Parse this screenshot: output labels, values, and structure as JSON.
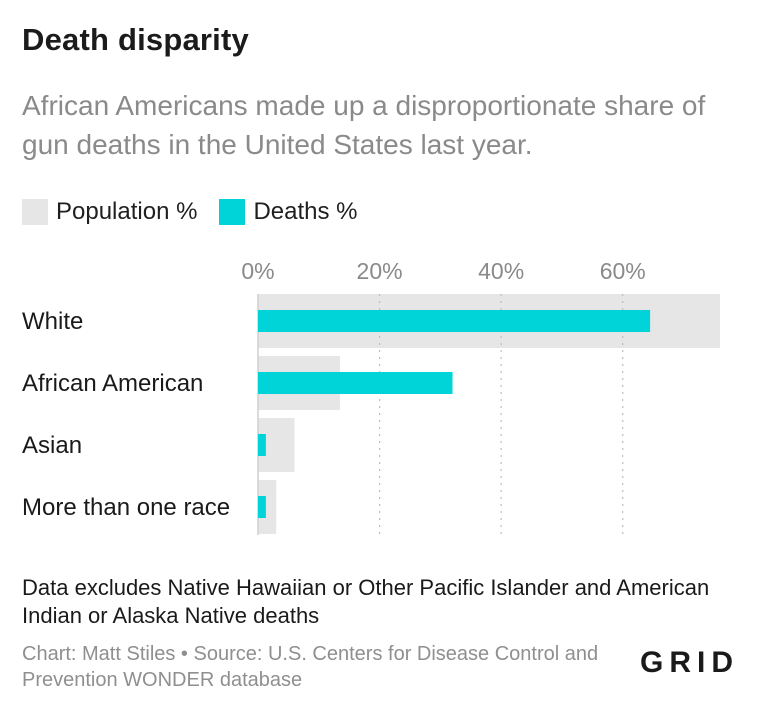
{
  "header": {
    "title": "Death disparity",
    "subtitle": "African Americans made up a disproportionate share of gun deaths in the United States last year."
  },
  "legend": {
    "items": [
      {
        "label": "Population %",
        "color": "#e6e6e6"
      },
      {
        "label": "Deaths %",
        "color": "#00d4d8"
      }
    ]
  },
  "chart_data": {
    "type": "bar",
    "orientation": "horizontal",
    "categories": [
      "White",
      "African American",
      "Asian",
      "More than one race"
    ],
    "series": [
      {
        "name": "Population %",
        "values": [
          76,
          13.5,
          6,
          3
        ]
      },
      {
        "name": "Deaths %",
        "values": [
          64.5,
          32,
          1.3,
          1.3
        ]
      }
    ],
    "xlim": [
      0,
      76
    ],
    "ticks": [
      0,
      20,
      40,
      60
    ],
    "tick_labels": [
      "0%",
      "20%",
      "40%",
      "60%"
    ],
    "grid": true,
    "legend_position": "top-left"
  },
  "footer": {
    "note": "Data excludes Native Hawaiian or Other Pacific Islander and American Indian or Alaska Native deaths",
    "credit": "Chart: Matt Stiles • Source: U.S. Centers for Disease Control and Prevention WONDER database",
    "logo": "GRID"
  }
}
